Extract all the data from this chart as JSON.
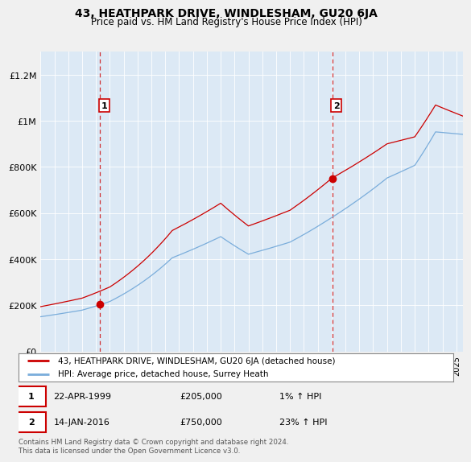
{
  "title": "43, HEATHPARK DRIVE, WINDLESHAM, GU20 6JA",
  "subtitle": "Price paid vs. HM Land Registry's House Price Index (HPI)",
  "legend_line1": "43, HEATHPARK DRIVE, WINDLESHAM, GU20 6JA (detached house)",
  "legend_line2": "HPI: Average price, detached house, Surrey Heath",
  "annotation1_date": "22-APR-1999",
  "annotation1_price": "£205,000",
  "annotation1_pct": "1% ↑ HPI",
  "annotation2_date": "14-JAN-2016",
  "annotation2_price": "£750,000",
  "annotation2_pct": "23% ↑ HPI",
  "footer": "Contains HM Land Registry data © Crown copyright and database right 2024.\nThis data is licensed under the Open Government Licence v3.0.",
  "price_color": "#cc0000",
  "hpi_color": "#7aaddb",
  "background_color": "#f0f0f0",
  "plot_bg_color": "#dce9f5",
  "grid_color": "#ffffff",
  "ylim": [
    0,
    1300000
  ],
  "yticks": [
    0,
    200000,
    400000,
    600000,
    800000,
    1000000,
    1200000
  ],
  "ytick_labels": [
    "£0",
    "£200K",
    "£400K",
    "£600K",
    "£800K",
    "£1M",
    "£1.2M"
  ],
  "sale1_year": 1999.3,
  "sale1_price": 205000,
  "sale2_year": 2016.04,
  "sale2_price": 750000,
  "xmin": 1995,
  "xmax": 2025.5
}
